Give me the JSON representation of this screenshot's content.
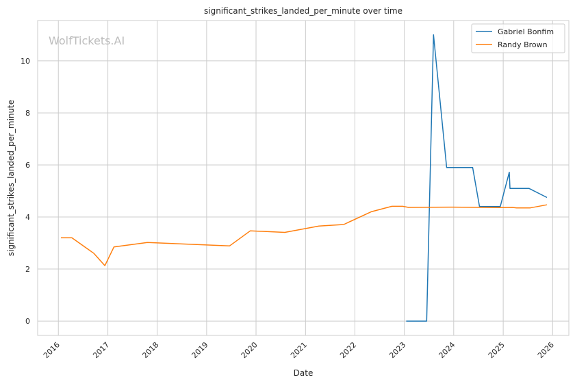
{
  "chart_data": {
    "type": "line",
    "title": "significant_strikes_landed_per_minute over time",
    "xlabel": "Date",
    "ylabel": "significant_strikes_landed_per_minute",
    "watermark": "WolfTickets.AI",
    "xlim": [
      "2015-08-01",
      "2026-05-01"
    ],
    "ylim": [
      -0.55,
      11.55
    ],
    "x_ticks": [
      "2016",
      "2017",
      "2018",
      "2019",
      "2020",
      "2021",
      "2022",
      "2023",
      "2024",
      "2025",
      "2026"
    ],
    "y_ticks": [
      0,
      2,
      4,
      6,
      8,
      10
    ],
    "grid": true,
    "legend_position": "top-right",
    "series": [
      {
        "name": "Gabriel Bonfim",
        "color": "#1f77b4",
        "points": [
          [
            "2023-01-15",
            0.0
          ],
          [
            "2023-06-15",
            0.0
          ],
          [
            "2023-08-05",
            11.0
          ],
          [
            "2023-11-10",
            5.9
          ],
          [
            "2024-05-20",
            5.9
          ],
          [
            "2024-07-10",
            4.4
          ],
          [
            "2024-12-10",
            4.4
          ],
          [
            "2025-02-15",
            5.72
          ],
          [
            "2025-02-20",
            5.1
          ],
          [
            "2025-07-10",
            5.1
          ],
          [
            "2025-11-20",
            4.75
          ]
        ]
      },
      {
        "name": "Randy Brown",
        "color": "#ff7f0e",
        "points": [
          [
            "2016-01-20",
            3.2
          ],
          [
            "2016-04-10",
            3.2
          ],
          [
            "2016-09-20",
            2.6
          ],
          [
            "2016-12-10",
            2.13
          ],
          [
            "2017-02-15",
            2.85
          ],
          [
            "2017-10-20",
            3.02
          ],
          [
            "2019-06-20",
            2.89
          ],
          [
            "2019-11-20",
            3.47
          ],
          [
            "2020-08-01",
            3.41
          ],
          [
            "2021-04-10",
            3.65
          ],
          [
            "2021-10-10",
            3.71
          ],
          [
            "2022-05-01",
            4.2
          ],
          [
            "2022-10-01",
            4.41
          ],
          [
            "2022-12-20",
            4.41
          ],
          [
            "2023-02-01",
            4.37
          ],
          [
            "2023-12-20",
            4.38
          ],
          [
            "2024-12-25",
            4.36
          ],
          [
            "2025-03-10",
            4.37
          ],
          [
            "2025-04-10",
            4.35
          ],
          [
            "2025-07-20",
            4.35
          ],
          [
            "2025-11-20",
            4.47
          ]
        ]
      }
    ]
  }
}
